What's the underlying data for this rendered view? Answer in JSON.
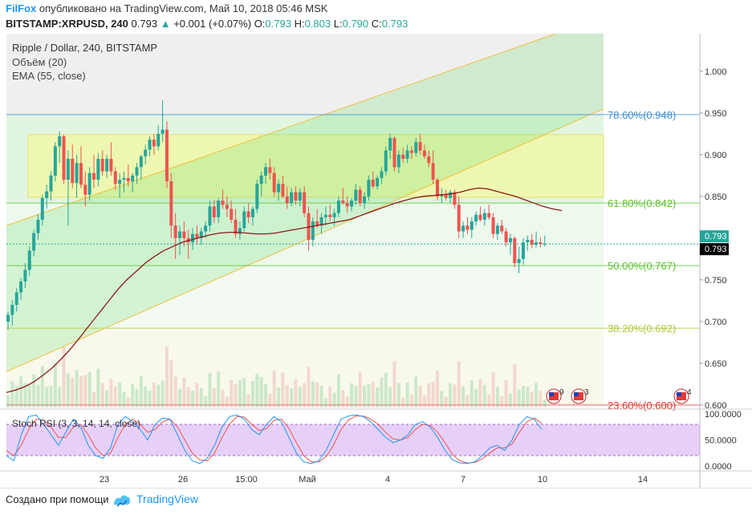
{
  "header": {
    "brand": "FilFox",
    "published": "опубликовано на TradingView.com, Май 10, 2018 05:46 MSK",
    "symbol": "BITSTAMP:XRPUSD, 240",
    "last": "0.793",
    "change": "+0.001 (+0.07%)",
    "o_label": "O:",
    "o_val": "0.793",
    "h_label": "H:",
    "h_val": "0.803",
    "l_label": "L:",
    "l_val": "0.790",
    "c_label": "C:",
    "c_val": "0.793"
  },
  "legend": {
    "title": "Ripple / Dollar, 240, BITSTAMP",
    "volume": "Объём (20)",
    "ema": "EMA (55, close)",
    "stoch": "Stoch RSI (3, 3, 14, 14, close)"
  },
  "footer": {
    "created_with": "Создано при помощи",
    "brand": "TradingView"
  },
  "colors": {
    "up": "#26a69a",
    "down": "#ef5350",
    "ema": "#8b1a1a",
    "fib_label_blue": "#3d8fd6",
    "fib_label_green": "#5dc334",
    "fib_label_olive": "#b5c43a",
    "fib_label_red": "#e53935",
    "stoch_k": "#2196f3",
    "stoch_d": "#ef5350"
  },
  "chart_data": {
    "type": "candlestick",
    "symbol": "BITSTAMP:XRPUSD",
    "timeframe": "240",
    "price_axis": {
      "ticks": [
        "1.000",
        "0.950",
        "0.900",
        "0.850",
        "0.800",
        "0.750",
        "0.700",
        "0.650",
        "0.600"
      ],
      "range": [
        0.597,
        1.045
      ]
    },
    "current_price_labels": [
      "0.793",
      "0.793"
    ],
    "time_axis": {
      "ticks": [
        "23",
        "26",
        "15:00",
        "Май",
        "4",
        "7",
        "10",
        "14"
      ]
    },
    "candles": [
      [
        0.7,
        0.712,
        0.69,
        0.708
      ],
      [
        0.708,
        0.726,
        0.695,
        0.72
      ],
      [
        0.72,
        0.74,
        0.712,
        0.735
      ],
      [
        0.735,
        0.752,
        0.726,
        0.748
      ],
      [
        0.748,
        0.77,
        0.74,
        0.762
      ],
      [
        0.762,
        0.79,
        0.755,
        0.785
      ],
      [
        0.785,
        0.81,
        0.778,
        0.806
      ],
      [
        0.806,
        0.828,
        0.798,
        0.822
      ],
      [
        0.822,
        0.852,
        0.815,
        0.848
      ],
      [
        0.848,
        0.864,
        0.835,
        0.856
      ],
      [
        0.856,
        0.88,
        0.845,
        0.875
      ],
      [
        0.875,
        0.915,
        0.868,
        0.91
      ],
      [
        0.91,
        0.928,
        0.89,
        0.922
      ],
      [
        0.922,
        0.924,
        0.865,
        0.87
      ],
      [
        0.87,
        0.905,
        0.815,
        0.895
      ],
      [
        0.895,
        0.912,
        0.86,
        0.866
      ],
      [
        0.866,
        0.9,
        0.848,
        0.89
      ],
      [
        0.89,
        0.91,
        0.86,
        0.864
      ],
      [
        0.864,
        0.88,
        0.838,
        0.852
      ],
      [
        0.852,
        0.885,
        0.845,
        0.878
      ],
      [
        0.878,
        0.9,
        0.86,
        0.87
      ],
      [
        0.87,
        0.902,
        0.862,
        0.895
      ],
      [
        0.895,
        0.905,
        0.875,
        0.88
      ],
      [
        0.88,
        0.9,
        0.872,
        0.895
      ],
      [
        0.895,
        0.915,
        0.875,
        0.88
      ],
      [
        0.88,
        0.885,
        0.858,
        0.865
      ],
      [
        0.865,
        0.878,
        0.848,
        0.87
      ],
      [
        0.87,
        0.88,
        0.855,
        0.872
      ],
      [
        0.872,
        0.888,
        0.862,
        0.868
      ],
      [
        0.868,
        0.878,
        0.855,
        0.875
      ],
      [
        0.875,
        0.89,
        0.865,
        0.885
      ],
      [
        0.885,
        0.9,
        0.87,
        0.898
      ],
      [
        0.898,
        0.912,
        0.888,
        0.906
      ],
      [
        0.906,
        0.922,
        0.898,
        0.918
      ],
      [
        0.918,
        0.925,
        0.9,
        0.91
      ],
      [
        0.91,
        0.935,
        0.905,
        0.925
      ],
      [
        0.925,
        0.965,
        0.915,
        0.93
      ],
      [
        0.93,
        0.94,
        0.86,
        0.868
      ],
      [
        0.868,
        0.878,
        0.8,
        0.815
      ],
      [
        0.815,
        0.83,
        0.775,
        0.8
      ],
      [
        0.8,
        0.815,
        0.78,
        0.808
      ],
      [
        0.808,
        0.82,
        0.79,
        0.8
      ],
      [
        0.8,
        0.81,
        0.775,
        0.795
      ],
      [
        0.795,
        0.812,
        0.786,
        0.805
      ],
      [
        0.805,
        0.815,
        0.792,
        0.8
      ],
      [
        0.8,
        0.812,
        0.792,
        0.808
      ],
      [
        0.808,
        0.82,
        0.8,
        0.815
      ],
      [
        0.815,
        0.845,
        0.808,
        0.838
      ],
      [
        0.838,
        0.846,
        0.818,
        0.825
      ],
      [
        0.825,
        0.848,
        0.818,
        0.845
      ],
      [
        0.845,
        0.858,
        0.835,
        0.84
      ],
      [
        0.84,
        0.85,
        0.825,
        0.835
      ],
      [
        0.835,
        0.845,
        0.818,
        0.822
      ],
      [
        0.822,
        0.835,
        0.8,
        0.805
      ],
      [
        0.805,
        0.82,
        0.798,
        0.812
      ],
      [
        0.812,
        0.838,
        0.808,
        0.832
      ],
      [
        0.832,
        0.842,
        0.818,
        0.825
      ],
      [
        0.825,
        0.838,
        0.815,
        0.835
      ],
      [
        0.835,
        0.87,
        0.83,
        0.865
      ],
      [
        0.865,
        0.88,
        0.85,
        0.875
      ],
      [
        0.875,
        0.89,
        0.865,
        0.885
      ],
      [
        0.885,
        0.895,
        0.87,
        0.878
      ],
      [
        0.878,
        0.885,
        0.85,
        0.855
      ],
      [
        0.855,
        0.87,
        0.845,
        0.865
      ],
      [
        0.865,
        0.875,
        0.848,
        0.85
      ],
      [
        0.85,
        0.862,
        0.835,
        0.842
      ],
      [
        0.842,
        0.86,
        0.838,
        0.855
      ],
      [
        0.855,
        0.862,
        0.84,
        0.845
      ],
      [
        0.845,
        0.86,
        0.838,
        0.855
      ],
      [
        0.855,
        0.862,
        0.825,
        0.83
      ],
      [
        0.83,
        0.838,
        0.785,
        0.798
      ],
      [
        0.798,
        0.825,
        0.79,
        0.82
      ],
      [
        0.82,
        0.835,
        0.812,
        0.815
      ],
      [
        0.815,
        0.83,
        0.805,
        0.825
      ],
      [
        0.825,
        0.838,
        0.815,
        0.828
      ],
      [
        0.828,
        0.84,
        0.82,
        0.825
      ],
      [
        0.825,
        0.835,
        0.815,
        0.83
      ],
      [
        0.83,
        0.85,
        0.825,
        0.845
      ],
      [
        0.845,
        0.86,
        0.84,
        0.842
      ],
      [
        0.842,
        0.85,
        0.83,
        0.838
      ],
      [
        0.838,
        0.848,
        0.832,
        0.845
      ],
      [
        0.845,
        0.865,
        0.84,
        0.858
      ],
      [
        0.858,
        0.862,
        0.838,
        0.842
      ],
      [
        0.842,
        0.855,
        0.835,
        0.85
      ],
      [
        0.85,
        0.875,
        0.845,
        0.87
      ],
      [
        0.87,
        0.88,
        0.86,
        0.862
      ],
      [
        0.862,
        0.875,
        0.858,
        0.872
      ],
      [
        0.872,
        0.885,
        0.865,
        0.88
      ],
      [
        0.88,
        0.91,
        0.875,
        0.905
      ],
      [
        0.905,
        0.925,
        0.895,
        0.92
      ],
      [
        0.92,
        0.922,
        0.88,
        0.885
      ],
      [
        0.885,
        0.905,
        0.878,
        0.9
      ],
      [
        0.9,
        0.908,
        0.89,
        0.895
      ],
      [
        0.895,
        0.912,
        0.89,
        0.905
      ],
      [
        0.905,
        0.91,
        0.895,
        0.902
      ],
      [
        0.902,
        0.92,
        0.898,
        0.915
      ],
      [
        0.915,
        0.925,
        0.9,
        0.905
      ],
      [
        0.905,
        0.912,
        0.895,
        0.898
      ],
      [
        0.898,
        0.905,
        0.885,
        0.89
      ],
      [
        0.89,
        0.905,
        0.865,
        0.87
      ],
      [
        0.87,
        0.872,
        0.845,
        0.85
      ],
      [
        0.85,
        0.86,
        0.842,
        0.852
      ],
      [
        0.852,
        0.858,
        0.845,
        0.848
      ],
      [
        0.848,
        0.858,
        0.842,
        0.855
      ],
      [
        0.855,
        0.858,
        0.835,
        0.84
      ],
      [
        0.84,
        0.85,
        0.8,
        0.808
      ],
      [
        0.808,
        0.82,
        0.8,
        0.815
      ],
      [
        0.815,
        0.825,
        0.805,
        0.81
      ],
      [
        0.81,
        0.825,
        0.8,
        0.82
      ],
      [
        0.82,
        0.832,
        0.815,
        0.828
      ],
      [
        0.828,
        0.838,
        0.82,
        0.822
      ],
      [
        0.822,
        0.835,
        0.815,
        0.83
      ],
      [
        0.83,
        0.84,
        0.822,
        0.825
      ],
      [
        0.825,
        0.83,
        0.8,
        0.805
      ],
      [
        0.805,
        0.818,
        0.798,
        0.815
      ],
      [
        0.815,
        0.822,
        0.805,
        0.808
      ],
      [
        0.808,
        0.812,
        0.79,
        0.795
      ],
      [
        0.795,
        0.805,
        0.78,
        0.8
      ],
      [
        0.8,
        0.802,
        0.765,
        0.77
      ],
      [
        0.77,
        0.79,
        0.758,
        0.775
      ],
      [
        0.775,
        0.8,
        0.768,
        0.795
      ],
      [
        0.795,
        0.803,
        0.785,
        0.798
      ],
      [
        0.798,
        0.805,
        0.788,
        0.792
      ],
      [
        0.792,
        0.808,
        0.789,
        0.795
      ],
      [
        0.795,
        0.801,
        0.789,
        0.793
      ],
      [
        0.793,
        0.803,
        0.79,
        0.793
      ]
    ],
    "ema55": [
      0.615,
      0.618,
      0.622,
      0.628,
      0.636,
      0.645,
      0.656,
      0.668,
      0.682,
      0.696,
      0.71,
      0.724,
      0.738,
      0.75,
      0.76,
      0.77,
      0.778,
      0.785,
      0.79,
      0.795,
      0.798,
      0.801,
      0.804,
      0.806,
      0.807,
      0.807,
      0.806,
      0.805,
      0.805,
      0.806,
      0.808,
      0.81,
      0.812,
      0.814,
      0.816,
      0.818,
      0.82,
      0.822,
      0.826,
      0.83,
      0.834,
      0.838,
      0.842,
      0.845,
      0.848,
      0.85,
      0.851,
      0.852,
      0.853,
      0.855,
      0.858,
      0.86,
      0.859,
      0.856,
      0.853,
      0.85,
      0.846,
      0.842,
      0.838,
      0.835,
      0.833
    ],
    "fib_levels": [
      {
        "label": "78.60%(0.948)",
        "price": 0.948,
        "color": "#3d8fd6"
      },
      {
        "label": "61.80%(0.842)",
        "price": 0.842,
        "color": "#5dc334"
      },
      {
        "label": "50.00%(0.767)",
        "price": 0.767,
        "color": "#5dc334"
      },
      {
        "label": "38.20%(0.692)",
        "price": 0.692,
        "color": "#b5c43a"
      },
      {
        "label": "23.60%(0.600)",
        "price": 0.6,
        "color": "#e53935"
      }
    ],
    "yellow_zone": [
      0.849,
      0.924
    ],
    "channel": {
      "lower_start": [
        0.597,
        0.64
      ],
      "lower_end": [
        1.0,
        0.955
      ],
      "upper_start": [
        0.597,
        0.815
      ],
      "upper_end": [
        1.0,
        1.065
      ]
    },
    "stoch_rsi": {
      "axis": [
        "100.0000",
        "50.0000",
        "0.0000"
      ],
      "bands": [
        80,
        20
      ],
      "k": [
        20,
        10,
        60,
        95,
        98,
        80,
        60,
        40,
        65,
        90,
        75,
        40,
        20,
        15,
        35,
        80,
        95,
        85,
        70,
        50,
        80,
        92,
        90,
        60,
        30,
        10,
        5,
        15,
        40,
        75,
        95,
        98,
        90,
        70,
        60,
        80,
        95,
        85,
        55,
        25,
        8,
        5,
        10,
        30,
        60,
        90,
        96,
        98,
        95,
        85,
        70,
        55,
        45,
        50,
        60,
        80,
        85,
        75,
        55,
        30,
        12,
        6,
        5,
        8,
        20,
        35,
        40,
        30,
        50,
        80,
        95,
        90,
        70
      ],
      "d": [
        30,
        20,
        40,
        70,
        90,
        88,
        75,
        55,
        55,
        75,
        80,
        60,
        35,
        20,
        25,
        55,
        80,
        90,
        80,
        65,
        70,
        85,
        90,
        75,
        50,
        25,
        12,
        10,
        25,
        55,
        80,
        95,
        94,
        80,
        68,
        72,
        88,
        90,
        72,
        45,
        20,
        8,
        8,
        18,
        40,
        70,
        88,
        96,
        96,
        90,
        80,
        65,
        52,
        50,
        55,
        70,
        80,
        78,
        65,
        45,
        22,
        10,
        6,
        7,
        14,
        25,
        35,
        35,
        42,
        65,
        85,
        92,
        82
      ]
    }
  }
}
